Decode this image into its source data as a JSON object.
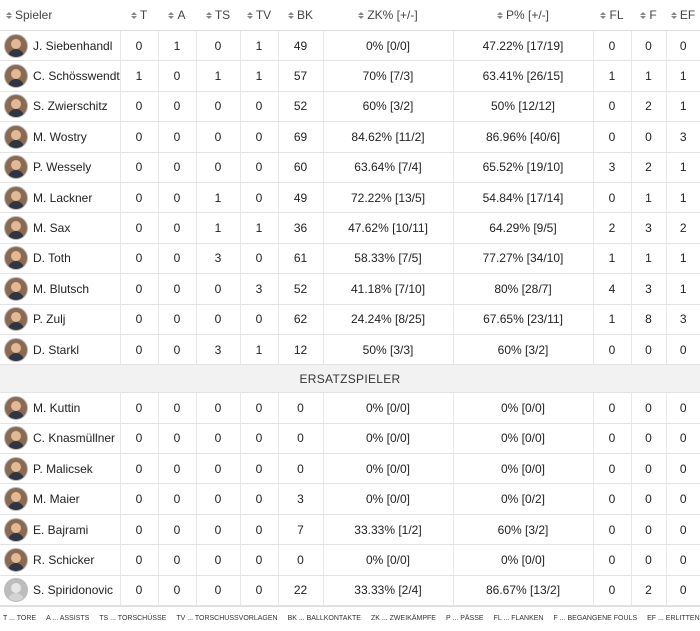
{
  "columns": [
    "Spieler",
    "T",
    "A",
    "TS",
    "TV",
    "BK",
    "ZK%  [+/-]",
    "P%  [+/-]",
    "FL",
    "F",
    "EF"
  ],
  "section_label": "ERSATZSPIELER",
  "starters": [
    {
      "name": "J. Siebenhandl",
      "t": "0",
      "a": "1",
      "ts": "0",
      "tv": "1",
      "bk": "49",
      "zk": "0%  [0/0]",
      "p": "47.22%  [17/19]",
      "fl": "0",
      "f": "0",
      "ef": "0"
    },
    {
      "name": "C. Schösswendter",
      "t": "1",
      "a": "0",
      "ts": "1",
      "tv": "1",
      "bk": "57",
      "zk": "70%  [7/3]",
      "p": "63.41%  [26/15]",
      "fl": "1",
      "f": "1",
      "ef": "1"
    },
    {
      "name": "S. Zwierschitz",
      "t": "0",
      "a": "0",
      "ts": "0",
      "tv": "0",
      "bk": "52",
      "zk": "60%  [3/2]",
      "p": "50%  [12/12]",
      "fl": "0",
      "f": "2",
      "ef": "1"
    },
    {
      "name": "M. Wostry",
      "t": "0",
      "a": "0",
      "ts": "0",
      "tv": "0",
      "bk": "69",
      "zk": "84.62%  [11/2]",
      "p": "86.96%  [40/6]",
      "fl": "0",
      "f": "0",
      "ef": "3"
    },
    {
      "name": "P. Wessely",
      "t": "0",
      "a": "0",
      "ts": "0",
      "tv": "0",
      "bk": "60",
      "zk": "63.64%  [7/4]",
      "p": "65.52%  [19/10]",
      "fl": "3",
      "f": "2",
      "ef": "1"
    },
    {
      "name": "M. Lackner",
      "t": "0",
      "a": "0",
      "ts": "1",
      "tv": "0",
      "bk": "49",
      "zk": "72.22%  [13/5]",
      "p": "54.84%  [17/14]",
      "fl": "0",
      "f": "1",
      "ef": "1"
    },
    {
      "name": "M. Sax",
      "t": "0",
      "a": "0",
      "ts": "1",
      "tv": "1",
      "bk": "36",
      "zk": "47.62%  [10/11]",
      "p": "64.29%  [9/5]",
      "fl": "2",
      "f": "3",
      "ef": "2"
    },
    {
      "name": "D. Toth",
      "t": "0",
      "a": "0",
      "ts": "3",
      "tv": "0",
      "bk": "61",
      "zk": "58.33%  [7/5]",
      "p": "77.27%  [34/10]",
      "fl": "1",
      "f": "1",
      "ef": "1"
    },
    {
      "name": "M. Blutsch",
      "t": "0",
      "a": "0",
      "ts": "0",
      "tv": "3",
      "bk": "52",
      "zk": "41.18%  [7/10]",
      "p": "80%  [28/7]",
      "fl": "4",
      "f": "3",
      "ef": "1"
    },
    {
      "name": "P. Zulj",
      "t": "0",
      "a": "0",
      "ts": "0",
      "tv": "0",
      "bk": "62",
      "zk": "24.24%  [8/25]",
      "p": "67.65%  [23/11]",
      "fl": "1",
      "f": "8",
      "ef": "3"
    },
    {
      "name": "D. Starkl",
      "t": "0",
      "a": "0",
      "ts": "3",
      "tv": "1",
      "bk": "12",
      "zk": "50%  [3/3]",
      "p": "60%  [3/2]",
      "fl": "0",
      "f": "0",
      "ef": "0"
    }
  ],
  "subs": [
    {
      "name": "M. Kuttin",
      "t": "0",
      "a": "0",
      "ts": "0",
      "tv": "0",
      "bk": "0",
      "zk": "0%  [0/0]",
      "p": "0%  [0/0]",
      "fl": "0",
      "f": "0",
      "ef": "0"
    },
    {
      "name": "C. Knasmüllner",
      "t": "0",
      "a": "0",
      "ts": "0",
      "tv": "0",
      "bk": "0",
      "zk": "0%  [0/0]",
      "p": "0%  [0/0]",
      "fl": "0",
      "f": "0",
      "ef": "0"
    },
    {
      "name": "P. Malicsek",
      "t": "0",
      "a": "0",
      "ts": "0",
      "tv": "0",
      "bk": "0",
      "zk": "0%  [0/0]",
      "p": "0%  [0/0]",
      "fl": "0",
      "f": "0",
      "ef": "0"
    },
    {
      "name": "M. Maier",
      "t": "0",
      "a": "0",
      "ts": "0",
      "tv": "0",
      "bk": "3",
      "zk": "0%  [0/0]",
      "p": "0%  [0/2]",
      "fl": "0",
      "f": "0",
      "ef": "0"
    },
    {
      "name": "E. Bajrami",
      "t": "0",
      "a": "0",
      "ts": "0",
      "tv": "0",
      "bk": "7",
      "zk": "33.33%  [1/2]",
      "p": "60%  [3/2]",
      "fl": "0",
      "f": "0",
      "ef": "0"
    },
    {
      "name": "R. Schicker",
      "t": "0",
      "a": "0",
      "ts": "0",
      "tv": "0",
      "bk": "0",
      "zk": "0%  [0/0]",
      "p": "0%  [0/0]",
      "fl": "0",
      "f": "0",
      "ef": "0"
    },
    {
      "name": "S. Spiridonovic",
      "t": "0",
      "a": "0",
      "ts": "0",
      "tv": "0",
      "bk": "22",
      "zk": "33.33%  [2/4]",
      "p": "86.67%  [13/2]",
      "fl": "0",
      "f": "2",
      "ef": "0",
      "avatar": "silhouette"
    }
  ],
  "legend": [
    "T ... TORE",
    "A ... ASSISTS",
    "TS ... TORSCHÜSSE",
    "TV ... TORSCHUSSVORLAGEN",
    "BK ... BALLKONTAKTE",
    "ZK ... ZWEIKÄMPFE",
    "P ... PÄSSE",
    "FL ... FLANKEN",
    "F ... BEGANGENE FOULS",
    "EF ... ERLITTENE FOULS"
  ]
}
